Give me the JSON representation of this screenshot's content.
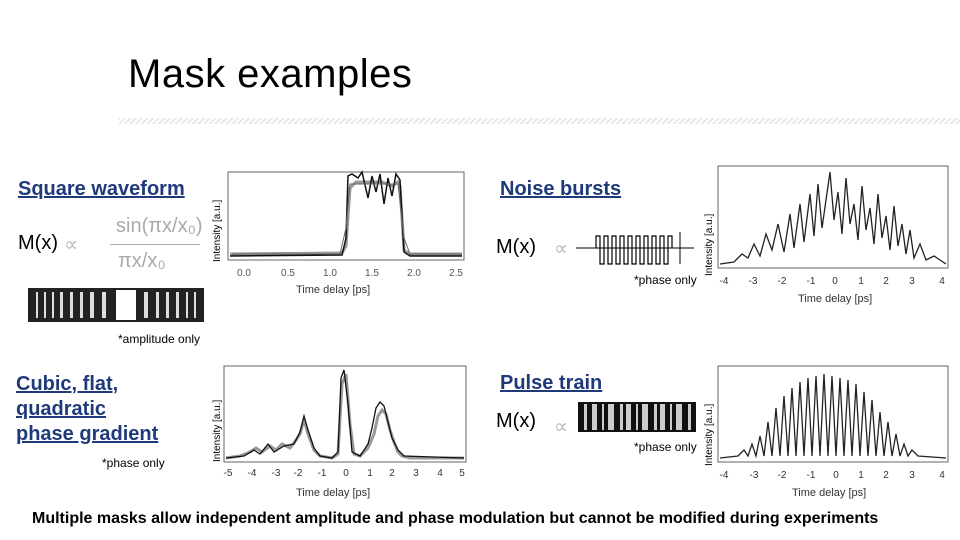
{
  "title": "Mask examples",
  "sections": {
    "square": {
      "heading": "Square waveform",
      "formula_lhs": "M(x)",
      "prop": "∝",
      "num": "sin(πx/x₀)",
      "den": "πx/x₀",
      "note": "*amplitude only"
    },
    "noise": {
      "heading": "Noise bursts",
      "formula_lhs": "M(x)",
      "prop": "∝",
      "note": "*phase only"
    },
    "cubic": {
      "heading_l1": "Cubic, flat,",
      "heading_l2": "quadratic",
      "heading_l3": "phase gradient",
      "note": "*phase only"
    },
    "pulse": {
      "heading": "Pulse train",
      "formula_lhs": "M(x)",
      "prop": "∝",
      "note": "*phase only"
    }
  },
  "plots": {
    "ylabel": "Intensity [a.u.]",
    "xlabel": "Time delay [ps]",
    "square_ticks": [
      "0.0",
      "0.5",
      "1.0",
      "1.5",
      "2.0",
      "2.5"
    ],
    "wide_ticks": [
      "-4",
      "-3",
      "-2",
      "-1",
      "0",
      "1",
      "2",
      "3",
      "4"
    ],
    "cubic_ticks": [
      "-5",
      "-4",
      "-3",
      "-2",
      "-1",
      "0",
      "1",
      "2",
      "3",
      "4",
      "5"
    ]
  },
  "footer": "Multiple masks allow independent amplitude and phase modulation but cannot be modified during experiments"
}
